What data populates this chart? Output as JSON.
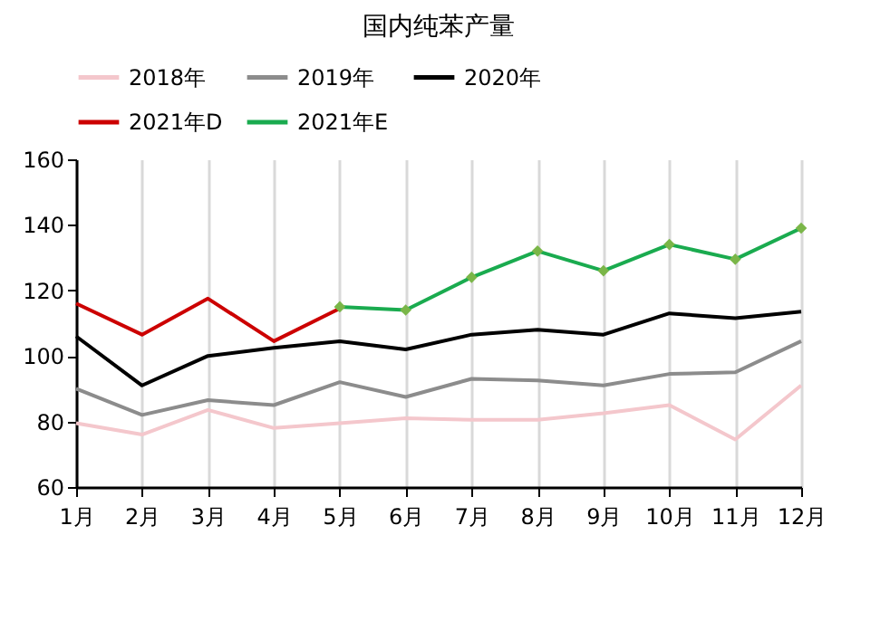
{
  "chart_data": {
    "type": "line",
    "title": "国内纯苯产量",
    "categories": [
      "1月",
      "2月",
      "3月",
      "4月",
      "5月",
      "6月",
      "7月",
      "8月",
      "9月",
      "10月",
      "11月",
      "12月"
    ],
    "series": [
      {
        "name": "2018年",
        "color": "#f4c7cc",
        "values": [
          79.5,
          76,
          83.5,
          78,
          79.5,
          81,
          80.5,
          80.5,
          82.5,
          85,
          74.5,
          91
        ]
      },
      {
        "name": "2019年",
        "color": "#8c8c8c",
        "values": [
          90,
          82,
          86.5,
          85,
          92,
          87.5,
          93,
          92.5,
          91,
          94.5,
          95,
          104.5
        ]
      },
      {
        "name": "2020年",
        "color": "#000000",
        "values": [
          106,
          91,
          100,
          102.5,
          104.5,
          102,
          106.5,
          108,
          106.5,
          113,
          111.5,
          113.5
        ]
      },
      {
        "name": "2021年D",
        "color": "#cc0000",
        "values": [
          116,
          106.5,
          117.5,
          104.5,
          114.5,
          null,
          null,
          null,
          null,
          null,
          null,
          null
        ]
      },
      {
        "name": "2021年E",
        "color": "#1aab4f",
        "marker": "diamond",
        "values": [
          null,
          null,
          null,
          null,
          115,
          114,
          124,
          132,
          126,
          134,
          129.5,
          139
        ]
      }
    ],
    "ylim": [
      60,
      160
    ],
    "yticks": [
      60,
      80,
      100,
      120,
      140,
      160
    ],
    "grid": "x",
    "legend": "top"
  }
}
